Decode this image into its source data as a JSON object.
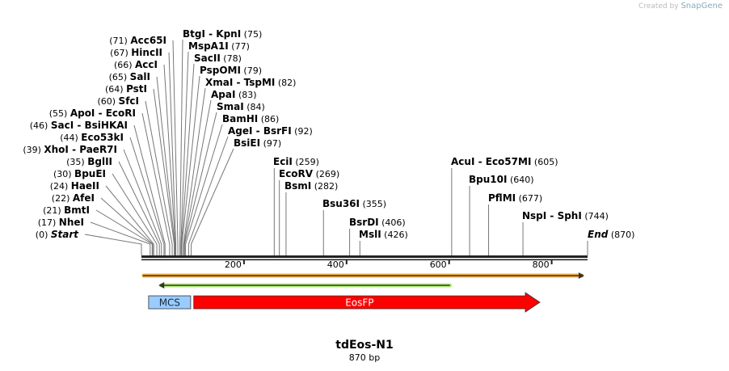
{
  "credit": {
    "prefix": "Created by",
    "brand": "SnapGene"
  },
  "map": {
    "name": "tdEos-N1",
    "length_label": "870 bp",
    "length": 870
  },
  "sites": [
    {
      "name": "Acc65I",
      "pos": 71
    },
    {
      "name": "HincII",
      "pos": 67
    },
    {
      "name": "AccI",
      "pos": 66
    },
    {
      "name": "SalI",
      "pos": 65
    },
    {
      "name": "PstI",
      "pos": 64
    },
    {
      "name": "SfcI",
      "pos": 60
    },
    {
      "name": "ApoI  - EcoRI",
      "pos": 55
    },
    {
      "name": "SacI  - BsiHKAI",
      "pos": 46
    },
    {
      "name": "Eco53kI",
      "pos": 44
    },
    {
      "name": "XhoI  - PaeR7I",
      "pos": 39
    },
    {
      "name": "BglII",
      "pos": 35
    },
    {
      "name": "BpuEI",
      "pos": 30
    },
    {
      "name": "HaeII",
      "pos": 24
    },
    {
      "name": "AfeI",
      "pos": 22
    },
    {
      "name": "BmtI",
      "pos": 21
    },
    {
      "name": "NheI",
      "pos": 17
    },
    {
      "name": "Start",
      "pos": 0
    },
    {
      "name": "BtgI  - KpnI",
      "pos": 75
    },
    {
      "name": "MspA1I",
      "pos": 77
    },
    {
      "name": "SacII",
      "pos": 78
    },
    {
      "name": "PspOMI",
      "pos": 79
    },
    {
      "name": "XmaI  - TspMI",
      "pos": 82
    },
    {
      "name": "ApaI",
      "pos": 83
    },
    {
      "name": "SmaI",
      "pos": 84
    },
    {
      "name": "BamHI",
      "pos": 86
    },
    {
      "name": "AgeI  - BsrFI",
      "pos": 92
    },
    {
      "name": "BsiEI",
      "pos": 97
    },
    {
      "name": "EciI",
      "pos": 259
    },
    {
      "name": "EcoRV",
      "pos": 269
    },
    {
      "name": "BsmI",
      "pos": 282
    },
    {
      "name": "Bsu36I",
      "pos": 355
    },
    {
      "name": "BsrDI",
      "pos": 406
    },
    {
      "name": "MslI",
      "pos": 426
    },
    {
      "name": "AcuI  - Eco57MI",
      "pos": 605
    },
    {
      "name": "Bpu10I",
      "pos": 640
    },
    {
      "name": "PflMI",
      "pos": 677
    },
    {
      "name": "NspI  - SphI",
      "pos": 744
    },
    {
      "name": "End",
      "pos": 870
    }
  ],
  "ticks": [
    200,
    400,
    600,
    800
  ],
  "features": [
    {
      "name": "orange-arrow",
      "start": 1,
      "end": 862,
      "direction": "forward",
      "color": "#f5b041",
      "label": ""
    },
    {
      "name": "green-arrow",
      "start": 35,
      "end": 605,
      "direction": "reverse",
      "color": "#b5f07a",
      "label": ""
    },
    {
      "name": "MCS",
      "start": 14,
      "end": 96,
      "direction": "none",
      "color": "#99ccff",
      "label": "MCS"
    },
    {
      "name": "EosFP",
      "start": 102,
      "end": 777,
      "direction": "forward",
      "color": "#ff0000",
      "label": "EosFP"
    }
  ]
}
